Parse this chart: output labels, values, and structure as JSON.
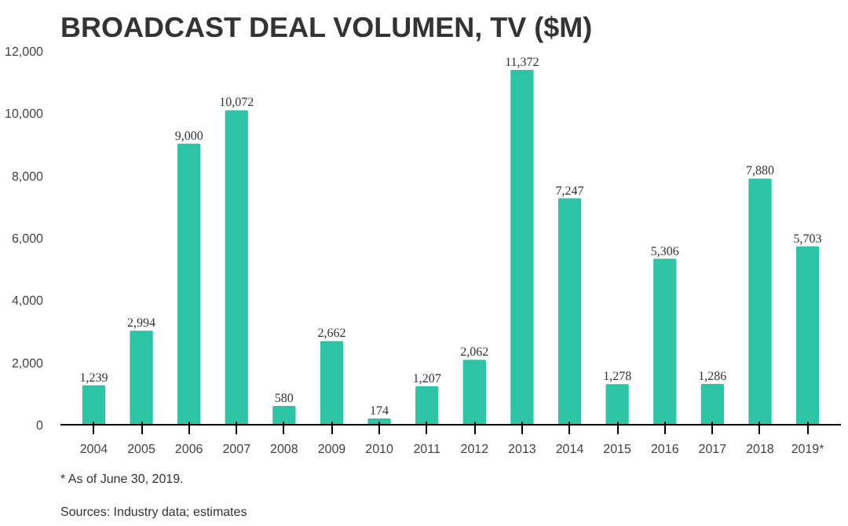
{
  "chart_data": {
    "type": "bar",
    "title": "BROADCAST DEAL VOLUMEN, TV ($M)",
    "categories": [
      "2004",
      "2005",
      "2006",
      "2007",
      "2008",
      "2009",
      "2010",
      "2011",
      "2012",
      "2013",
      "2014",
      "2015",
      "2016",
      "2017",
      "2018",
      "2019*"
    ],
    "values": [
      1239,
      2994,
      9000,
      10072,
      580,
      2662,
      174,
      1207,
      2062,
      11372,
      7247,
      1278,
      5306,
      1286,
      7880,
      5703
    ],
    "value_labels": [
      "1,239",
      "2,994",
      "9,000",
      "10,072",
      "580",
      "2,662",
      "174",
      "1,207",
      "2,062",
      "11,372",
      "7,247",
      "1,278",
      "5,306",
      "1,286",
      "7,880",
      "5,703"
    ],
    "color": "#2ec4a6",
    "ylim": [
      0,
      12000
    ],
    "yticks": [
      0,
      {
        "value": 2000,
        "label": "2,000"
      },
      {
        "value": 4000,
        "label": "4,000"
      },
      {
        "value": 6000,
        "label": "6,000"
      },
      {
        "value": 8000,
        "label": "8,000"
      },
      {
        "value": 10000,
        "label": "10,000"
      },
      {
        "value": 12000,
        "label": "12,000"
      }
    ],
    "grid": false,
    "annotations": [
      "* As of June 30, 2019.",
      "Sources: Industry data; estimates"
    ]
  }
}
